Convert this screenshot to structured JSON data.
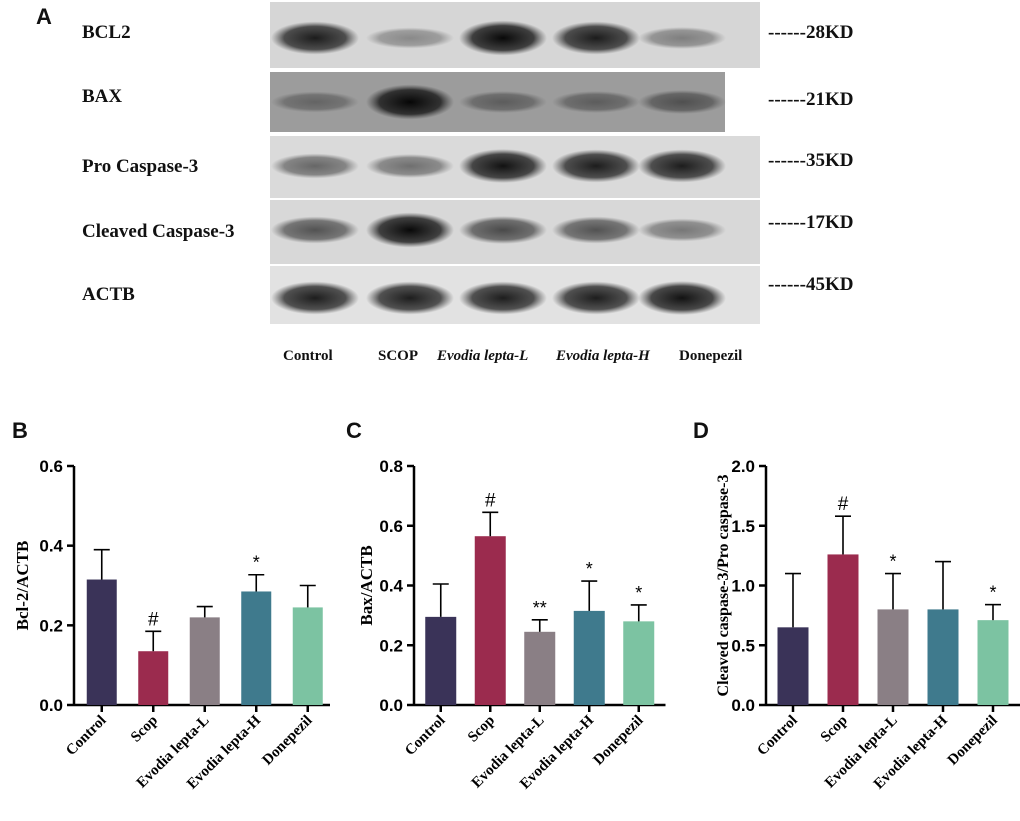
{
  "panels": {
    "a": "A",
    "b": "B",
    "c": "C",
    "d": "D"
  },
  "blot": {
    "rows": [
      {
        "protein": "BCL2",
        "kd": "------28KD",
        "intensity": [
          0.85,
          0.25,
          0.95,
          0.85,
          0.3
        ]
      },
      {
        "protein": "BAX",
        "kd": "------21KD",
        "intensity": [
          0.25,
          0.95,
          0.3,
          0.3,
          0.4
        ]
      },
      {
        "protein": "Pro Caspase-3",
        "kd": "------35KD",
        "intensity": [
          0.45,
          0.4,
          0.9,
          0.85,
          0.85
        ]
      },
      {
        "protein": "Cleaved Caspase-3",
        "kd": "------17KD",
        "intensity": [
          0.55,
          0.95,
          0.6,
          0.55,
          0.35
        ]
      },
      {
        "protein": "ACTB",
        "kd": "------45KD",
        "intensity": [
          0.85,
          0.85,
          0.85,
          0.85,
          0.9
        ]
      }
    ],
    "lanes": [
      "Control",
      "SCOP",
      "Evodia lepta-L",
      "Evodia lepta-H",
      "Donepezil"
    ]
  },
  "chart_data": [
    {
      "type": "bar",
      "ylabel": "Bcl-2/ACTB",
      "ylim": [
        0,
        0.6
      ],
      "yticks": [
        "0.0",
        "0.2",
        "0.4",
        "0.6"
      ],
      "categories": [
        "Control",
        "Scop",
        "Evodia lepta-L",
        "Evodia lepta-H",
        "Donepezil"
      ],
      "values": [
        0.315,
        0.135,
        0.22,
        0.285,
        0.245
      ],
      "errors": [
        0.075,
        0.05,
        0.027,
        0.042,
        0.055
      ],
      "annotations": [
        "",
        "#",
        "",
        "*",
        ""
      ],
      "colors": [
        "#3a3358",
        "#9b2b4e",
        "#8a7f85",
        "#3f7a8d",
        "#7cc3a2"
      ]
    },
    {
      "type": "bar",
      "ylabel": "Bax/ACTB",
      "ylim": [
        0,
        0.8
      ],
      "yticks": [
        "0.0",
        "0.2",
        "0.4",
        "0.6",
        "0.8"
      ],
      "categories": [
        "Control",
        "Scop",
        "Evodia lepta-L",
        "Evodia lepta-H",
        "Donepezil"
      ],
      "values": [
        0.295,
        0.565,
        0.245,
        0.315,
        0.28
      ],
      "errors": [
        0.11,
        0.08,
        0.04,
        0.1,
        0.055
      ],
      "annotations": [
        "",
        "#",
        "**",
        "*",
        "*"
      ],
      "colors": [
        "#3a3358",
        "#9b2b4e",
        "#8a7f85",
        "#3f7a8d",
        "#7cc3a2"
      ]
    },
    {
      "type": "bar",
      "ylabel": "Cleaved caspase-3/Pro caspase-3",
      "ylim": [
        0,
        2.0
      ],
      "yticks": [
        "0.0",
        "0.5",
        "1.0",
        "1.5",
        "2.0"
      ],
      "categories": [
        "Control",
        "Scop",
        "Evodia lepta-L",
        "Evodia lepta-H",
        "Donepezil"
      ],
      "values": [
        0.65,
        1.26,
        0.8,
        0.8,
        0.71
      ],
      "errors": [
        0.45,
        0.32,
        0.3,
        0.4,
        0.13
      ],
      "annotations": [
        "",
        "#",
        "*",
        "",
        "*"
      ],
      "colors": [
        "#3a3358",
        "#9b2b4e",
        "#8a7f85",
        "#3f7a8d",
        "#7cc3a2"
      ]
    }
  ]
}
